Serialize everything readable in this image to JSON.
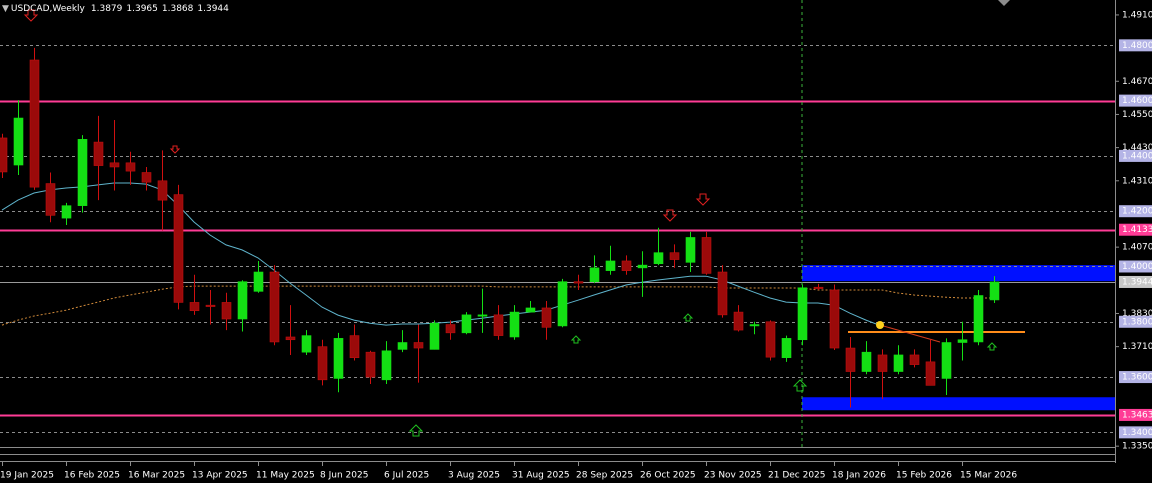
{
  "chart_data": {
    "type": "candlestick",
    "title": "USDCAD,Weekly",
    "categories": [
      "19 Jan 2025",
      null,
      null,
      null,
      "16 Feb 2025",
      null,
      null,
      null,
      "16 Mar 2025",
      null,
      null,
      null,
      "13 Apr 2025",
      null,
      null,
      null,
      "11 May 2025",
      null,
      null,
      null,
      "8 Jun 2025",
      null,
      null,
      null,
      "6 Jul 2025",
      null,
      null,
      null,
      "3 Aug 2025",
      null,
      null,
      null,
      "31 Aug 2025",
      null,
      null,
      null,
      "28 Sep 2025",
      null,
      null,
      null,
      "26 Oct 2025",
      null,
      null,
      null,
      "23 Nov 2025",
      null,
      null,
      null,
      "21 Dec 2025",
      null,
      null,
      null,
      "18 Jan 2026",
      null,
      null,
      null,
      "15 Feb 2026",
      null,
      null,
      null,
      "15 Mar 2026",
      null,
      null
    ],
    "open": [
      1.4465,
      1.4367,
      1.4747,
      1.43,
      1.4175,
      1.422,
      1.445,
      1.4375,
      1.4375,
      1.434,
      1.431,
      1.426,
      1.387,
      1.386,
      1.387,
      1.381,
      1.391,
      1.398,
      1.3745,
      1.369,
      1.371,
      1.3595,
      1.375,
      1.369,
      1.359,
      1.37,
      1.3725,
      1.37,
      1.379,
      1.376,
      1.382,
      1.3825,
      1.3745,
      1.3835,
      1.385,
      1.3785,
      1.3945,
      1.3945,
      1.3985,
      1.402,
      1.3995,
      1.401,
      1.405,
      1.4015,
      1.4105,
      1.398,
      1.3835,
      1.3785,
      1.38,
      1.367,
      1.3735,
      1.3925,
      1.3915,
      1.3705,
      1.362,
      1.368,
      1.362,
      1.368,
      1.3655,
      1.3595,
      1.3725,
      1.3727,
      1.3879
    ],
    "high": [
      1.448,
      1.4602,
      1.4791,
      1.434,
      1.423,
      1.4475,
      1.4545,
      1.453,
      1.4415,
      1.436,
      1.442,
      1.4295,
      1.397,
      1.3915,
      1.3905,
      1.395,
      1.402,
      1.4005,
      1.386,
      1.377,
      1.3735,
      1.376,
      1.379,
      1.3695,
      1.373,
      1.377,
      1.379,
      1.3805,
      1.3805,
      1.3835,
      1.392,
      1.386,
      1.386,
      1.3875,
      1.3875,
      1.3955,
      1.397,
      1.404,
      1.4075,
      1.404,
      1.4055,
      1.414,
      1.408,
      1.4125,
      1.4125,
      1.4005,
      1.386,
      1.38,
      1.3805,
      1.375,
      1.3935,
      1.3937,
      1.3935,
      1.3745,
      1.373,
      1.37,
      1.3715,
      1.37,
      1.3735,
      1.374,
      1.38,
      1.3915,
      1.3965
    ],
    "low": [
      1.432,
      1.4331,
      1.4277,
      1.416,
      1.415,
      1.4195,
      1.424,
      1.4275,
      1.4295,
      1.4275,
      1.413,
      1.3845,
      1.3825,
      1.379,
      1.377,
      1.3765,
      1.3905,
      1.3715,
      1.368,
      1.368,
      1.357,
      1.3545,
      1.366,
      1.3575,
      1.3575,
      1.369,
      1.358,
      1.37,
      1.3735,
      1.3755,
      1.376,
      1.3735,
      1.3735,
      1.3835,
      1.3735,
      1.378,
      1.3915,
      1.394,
      1.397,
      1.397,
      1.389,
      1.4005,
      1.3995,
      1.398,
      1.397,
      1.3815,
      1.3765,
      1.3755,
      1.366,
      1.3655,
      1.3715,
      1.3915,
      1.3698,
      1.349,
      1.361,
      1.352,
      1.361,
      1.3635,
      1.357,
      1.3535,
      1.366,
      1.3715,
      1.3868
    ],
    "close": [
      1.4342,
      1.4537,
      1.4287,
      1.4185,
      1.422,
      1.446,
      1.4365,
      1.436,
      1.4345,
      1.4305,
      1.424,
      1.387,
      1.384,
      1.3855,
      1.381,
      1.3945,
      1.398,
      1.3727,
      1.3735,
      1.375,
      1.359,
      1.374,
      1.367,
      1.36,
      1.3695,
      1.3725,
      1.3705,
      1.3795,
      1.376,
      1.3825,
      1.3825,
      1.375,
      1.3835,
      1.385,
      1.378,
      1.3945,
      1.394,
      1.3995,
      1.402,
      1.3985,
      1.4005,
      1.405,
      1.4025,
      1.4105,
      1.3975,
      1.3825,
      1.377,
      1.379,
      1.3672,
      1.374,
      1.3923,
      1.392,
      1.3705,
      1.362,
      1.369,
      1.362,
      1.368,
      1.3645,
      1.357,
      1.3725,
      1.3735,
      1.3895,
      1.3944
    ],
    "up_color": "#14e014",
    "down_color": "#9b0a0a",
    "ma_fast": {
      "color": "#5fb4cc",
      "values": [
        1.4204,
        1.424,
        1.4266,
        1.4277,
        1.4284,
        1.4288,
        1.4295,
        1.4302,
        1.4302,
        1.4298,
        1.4277,
        1.4222,
        1.4161,
        1.4114,
        1.4078,
        1.406,
        1.4031,
        1.3987,
        1.394,
        1.3897,
        1.3853,
        1.3824,
        1.3806,
        1.3795,
        1.3788,
        1.3792,
        1.3792,
        1.3795,
        1.3799,
        1.3806,
        1.3813,
        1.3821,
        1.3828,
        1.3835,
        1.3842,
        1.386,
        1.3878,
        1.3897,
        1.3915,
        1.3933,
        1.3943,
        1.3951,
        1.3958,
        1.3965,
        1.3965,
        1.3951,
        1.3929,
        1.3907,
        1.3886,
        1.3871,
        1.3868,
        1.3868,
        1.386,
        1.3831,
        1.3806,
        1.3784,
        null,
        null,
        null,
        null,
        null,
        null,
        null
      ]
    },
    "ma_slow": {
      "color": "#d08a3a",
      "values": [
        1.3788,
        1.3806,
        1.3821,
        1.3831,
        1.3842,
        1.3857,
        1.3871,
        1.3886,
        1.3897,
        1.3907,
        1.3918,
        1.3926,
        1.3929,
        1.3929,
        1.3929,
        1.3929,
        1.3929,
        1.3929,
        1.3929,
        1.3929,
        1.3929,
        1.3929,
        1.3929,
        1.3929,
        1.3929,
        1.3929,
        1.3929,
        1.3929,
        1.3929,
        1.3929,
        1.3929,
        1.3926,
        1.3926,
        1.3926,
        1.3926,
        1.3926,
        1.3926,
        1.3926,
        1.3926,
        1.3926,
        1.3926,
        1.3926,
        1.3926,
        1.3926,
        1.3926,
        1.3922,
        1.3922,
        1.3922,
        1.3922,
        1.3922,
        1.3922,
        1.3915,
        1.3915,
        1.3915,
        1.3915,
        1.3915,
        1.3904,
        1.3897,
        1.3893,
        1.3889,
        1.3886,
        1.3886,
        1.3886
      ]
    },
    "ylim": [
      1.3347,
      1.4964
    ],
    "yticks": [
      {
        "value": 1.491,
        "label": "1.4910"
      },
      {
        "value": 1.467,
        "label": "1.4670"
      },
      {
        "value": 1.455,
        "label": "1.4550"
      },
      {
        "value": 1.443,
        "label": "1.4430"
      },
      {
        "value": 1.431,
        "label": "1.4310"
      },
      {
        "value": 1.407,
        "label": "1.4070"
      },
      {
        "value": 1.383,
        "label": "1.3830"
      },
      {
        "value": 1.371,
        "label": "1.3710"
      },
      {
        "value": 1.335,
        "label": "1.3350"
      }
    ],
    "levels": [
      {
        "value": 1.48,
        "label": "1.4800"
      },
      {
        "value": 1.46,
        "label": "1.4600"
      },
      {
        "value": 1.44,
        "label": "1.4400"
      },
      {
        "value": 1.42,
        "label": "1.4200"
      },
      {
        "value": 1.4,
        "label": "1.4000"
      },
      {
        "value": 1.38,
        "label": "1.3800"
      },
      {
        "value": 1.36,
        "label": "1.3600"
      },
      {
        "value": 1.34,
        "label": "1.3400"
      }
    ],
    "key_lines": [
      1.46,
      {
        "value": 1.4133,
        "label": "1.4133"
      },
      {
        "value": 1.3463,
        "label": "1.3463"
      }
    ],
    "key_line_color": "#ff3c96",
    "zones": [
      {
        "low": 1.3947,
        "high": 1.4005
      },
      {
        "low": 1.348,
        "high": 1.3527
      }
    ],
    "zone_color": "#0010ff"
  }
}
